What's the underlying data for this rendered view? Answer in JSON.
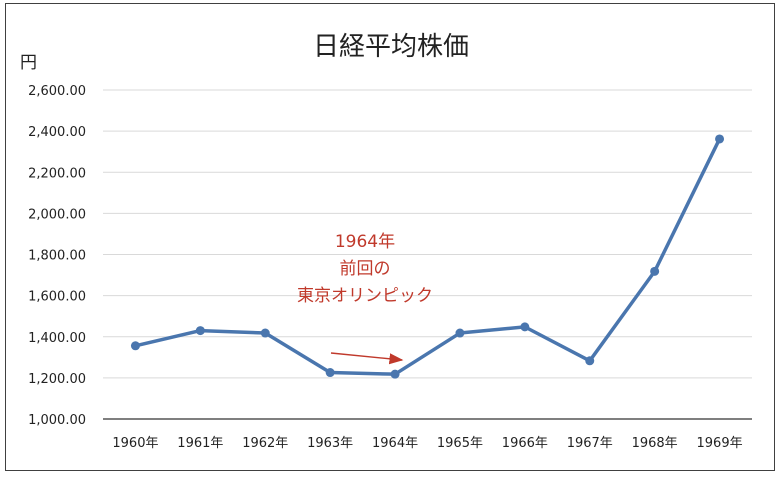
{
  "chart_data": {
    "type": "line",
    "title": "日経平均株価",
    "ylabel": "円",
    "categories": [
      "1960年",
      "1961年",
      "1962年",
      "1963年",
      "1964年",
      "1965年",
      "1966年",
      "1967年",
      "1968年",
      "1969年"
    ],
    "series": [
      {
        "values": [
          1356,
          1430,
          1418,
          1226,
          1218,
          1418,
          1448,
          1283,
          1718,
          2362
        ]
      }
    ],
    "ylim": [
      1000,
      2600
    ],
    "yticks": [
      "1,000.00",
      "1,200.00",
      "1,400.00",
      "1,600.00",
      "1,800.00",
      "2,000.00",
      "2,200.00",
      "2,400.00",
      "2,600.00"
    ],
    "grid": true,
    "colors": {
      "line": "#4a76ae",
      "annotation": "#c0392b",
      "grid": "#d9d9d9"
    },
    "annotation": {
      "lines": [
        "1964年",
        "前回の",
        "東京オリンピック"
      ]
    }
  }
}
